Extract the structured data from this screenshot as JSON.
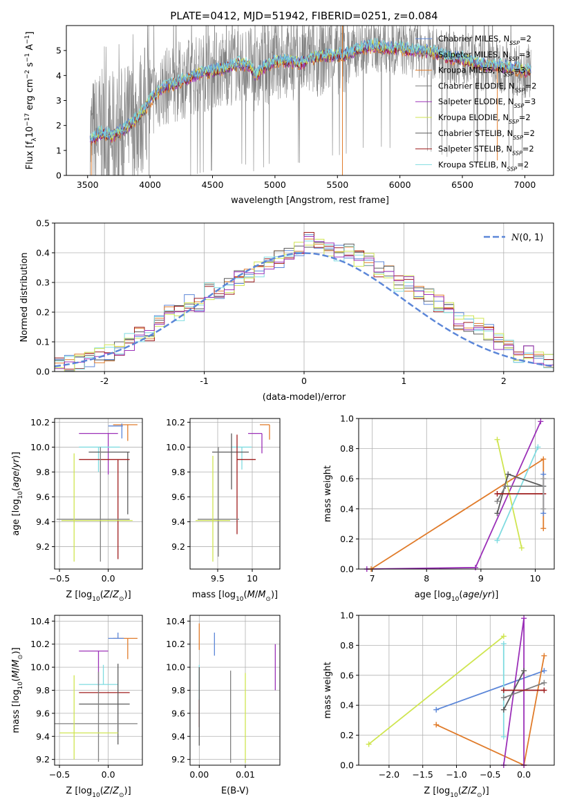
{
  "figure": {
    "title": "PLATE=0412, MJD=51942, FIBERID=0251, z=0.084"
  },
  "colors": {
    "Chabrier MILES": "#5b86d8",
    "Salpeter MILES": "#9b9b9b",
    "Kroupa MILES": "#e07b2a",
    "Chabrier ELODIE": "#7f7f7f",
    "Salpeter ELODIE": "#9b30b8",
    "Kroupa ELODIE": "#cfe550",
    "Chabrier STELIB": "#5a5a5a",
    "Salpeter STELIB": "#9e1b1b",
    "Kroupa STELIB": "#7fdbe0",
    "data": "#808080",
    "normal": "#5b86d8"
  },
  "chart_data": [
    {
      "id": "spectrum",
      "type": "line",
      "xlabel": "wavelength [Angstrom, rest frame]",
      "ylabel": "Flux [f_λ 10^-17 erg cm^-2 s^-1 A^-1]",
      "xlim": [
        3330,
        7230
      ],
      "ylim": [
        0,
        6
      ],
      "xticks": [
        3500,
        4000,
        4500,
        5000,
        5500,
        6000,
        6500,
        7000
      ],
      "yticks": [
        0,
        1,
        2,
        3,
        4,
        5
      ],
      "legend_position": "top-right",
      "legend": [
        {
          "model": "Chabrier MILES",
          "label": "Chabrier MILES, N",
          "n_ssp": 2
        },
        {
          "model": "Salpeter MILES",
          "label": "Salpeter MILES, N",
          "n_ssp": 3
        },
        {
          "model": "Kroupa MILES",
          "label": "Kroupa MILES, N",
          "n_ssp": 3
        },
        {
          "model": "Chabrier ELODIE",
          "label": "Chabrier ELODIE, N",
          "n_ssp": 2
        },
        {
          "model": "Salpeter ELODIE",
          "label": "Salpeter ELODIE, N",
          "n_ssp": 3
        },
        {
          "model": "Kroupa ELODIE",
          "label": "Kroupa ELODIE, N",
          "n_ssp": 2
        },
        {
          "model": "Chabrier STELIB",
          "label": "Chabrier STELIB, N",
          "n_ssp": 2
        },
        {
          "model": "Salpeter STELIB",
          "label": "Salpeter STELIB, N",
          "n_ssp": 2
        },
        {
          "model": "Kroupa STELIB",
          "label": "Kroupa STELIB, N",
          "n_ssp": 2
        }
      ],
      "model_continuum": {
        "x": [
          3520,
          3600,
          3700,
          3800,
          3900,
          4000,
          4100,
          4200,
          4300,
          4400,
          4500,
          4600,
          4700,
          4800,
          4850,
          4900,
          5000,
          5100,
          5200,
          5300,
          5400,
          5500,
          5600,
          5700,
          5800,
          5900,
          6000,
          6100,
          6200,
          6300,
          6400,
          6500,
          6600,
          6700,
          6800,
          6900,
          7000,
          7050
        ],
        "y": [
          1.4,
          1.7,
          1.6,
          1.9,
          2.3,
          3.0,
          3.5,
          3.7,
          3.9,
          4.1,
          4.2,
          4.3,
          4.5,
          4.4,
          4.0,
          4.3,
          4.6,
          4.6,
          4.5,
          4.7,
          4.8,
          4.8,
          4.9,
          5.1,
          5.2,
          5.1,
          5.1,
          5.0,
          5.0,
          4.9,
          4.7,
          4.7,
          4.5,
          4.4,
          4.4,
          4.3,
          4.2,
          4.2
        ]
      }
    },
    {
      "id": "residuals",
      "type": "step",
      "xlabel": "(data-model)/error",
      "ylabel": "Normed distribution",
      "xlim": [
        -2.5,
        2.5
      ],
      "ylim": [
        0,
        0.5
      ],
      "xticks": [
        -2,
        -1,
        0,
        1,
        2
      ],
      "yticks": [
        0.0,
        0.1,
        0.2,
        0.3,
        0.4,
        0.5
      ],
      "grid": true,
      "legend_position": "top-right",
      "legend_label": "N(0, 1)",
      "bin_edges": [
        -2.5,
        -2.4,
        -2.3,
        -2.2,
        -2.1,
        -2.0,
        -1.9,
        -1.8,
        -1.7,
        -1.6,
        -1.5,
        -1.4,
        -1.3,
        -1.2,
        -1.1,
        -1.0,
        -0.9,
        -0.8,
        -0.7,
        -0.6,
        -0.5,
        -0.4,
        -0.3,
        -0.2,
        -0.1,
        0.0,
        0.1,
        0.2,
        0.3,
        0.4,
        0.5,
        0.6,
        0.7,
        0.8,
        0.9,
        1.0,
        1.1,
        1.2,
        1.3,
        1.4,
        1.5,
        1.6,
        1.7,
        1.8,
        1.9,
        2.0,
        2.1,
        2.2,
        2.3,
        2.4,
        2.5
      ],
      "histogram": [
        0.018,
        0.025,
        0.03,
        0.04,
        0.055,
        0.06,
        0.08,
        0.1,
        0.12,
        0.13,
        0.17,
        0.2,
        0.2,
        0.23,
        0.22,
        0.27,
        0.27,
        0.29,
        0.31,
        0.33,
        0.34,
        0.36,
        0.38,
        0.39,
        0.42,
        0.44,
        0.42,
        0.41,
        0.4,
        0.4,
        0.38,
        0.37,
        0.34,
        0.33,
        0.3,
        0.3,
        0.26,
        0.25,
        0.23,
        0.22,
        0.17,
        0.16,
        0.15,
        0.13,
        0.1,
        0.08,
        0.06,
        0.06,
        0.045,
        0.04
      ]
    },
    {
      "id": "z-age",
      "type": "errorbar",
      "xlabel": "Z [log10(Z/Z☉)]",
      "ylabel": "age  [log10(age/yr)]",
      "xlim": [
        -0.55,
        0.35
      ],
      "ylim": [
        9.02,
        10.23
      ],
      "xticks": [
        -0.5,
        0.0
      ],
      "xticklabels": [
        "−0.5",
        "0.0"
      ],
      "yticks": [
        9.2,
        9.4,
        9.6,
        9.8,
        10.0,
        10.2
      ],
      "grid": true,
      "points": [
        {
          "model": "Kroupa MILES",
          "x": 0.2,
          "y": 10.18,
          "xerr": [
            0.15,
            0.1
          ],
          "yerr": [
            0.13,
            0.0
          ]
        },
        {
          "model": "Chabrier MILES",
          "x": 0.14,
          "y": 10.17,
          "xerr": [
            0.14,
            0.01
          ],
          "yerr": [
            0.1,
            0.02
          ]
        },
        {
          "model": "Salpeter ELODIE",
          "x": 0.0,
          "y": 10.11,
          "xerr": [
            0.3,
            0.1
          ],
          "yerr": [
            0.33,
            0.0
          ]
        },
        {
          "model": "Kroupa STELIB",
          "x": -0.1,
          "y": 10.0,
          "xerr": [
            0.2,
            0.22
          ],
          "yerr": [
            0.2,
            0.0
          ]
        },
        {
          "model": "Chabrier STELIB",
          "x": 0.2,
          "y": 9.96,
          "xerr": [
            0.4,
            0.02
          ],
          "yerr": [
            0.5,
            0.0
          ]
        },
        {
          "model": "Salpeter STELIB",
          "x": 0.0,
          "y": 9.9,
          "xerr": [
            0.3,
            0.22
          ],
          "yerr": [
            0.0,
            0.0
          ]
        },
        {
          "model": "Salpeter STELIB",
          "x": 0.1,
          "y": 9.9,
          "xerr": [
            0.0,
            0.0
          ],
          "yerr": [
            0.8,
            0.0
          ]
        },
        {
          "model": "Chabrier ELODIE",
          "x": -0.08,
          "y": 9.42,
          "xerr": [
            0.45,
            0.3
          ],
          "yerr": [
            0.34,
            0.58
          ]
        },
        {
          "model": "Kroupa ELODIE",
          "x": -0.35,
          "y": 9.41,
          "xerr": [
            0.13,
            0.6
          ],
          "yerr": [
            0.33,
            0.54
          ]
        }
      ]
    },
    {
      "id": "mass-age",
      "type": "errorbar",
      "xlabel": "mass [log10(M/M☉)]",
      "xlim": [
        9.1,
        10.4
      ],
      "ylim": [
        9.02,
        10.23
      ],
      "xticks": [
        9.5,
        10.0
      ],
      "yticks": [
        9.2,
        9.4,
        9.6,
        9.8,
        10.0,
        10.2
      ],
      "grid": true,
      "points": [
        {
          "model": "Kroupa MILES",
          "x": 10.25,
          "y": 10.18,
          "xerr": [
            0.14,
            0.0
          ],
          "yerr": [
            0.12,
            0.0
          ]
        },
        {
          "model": "Salpeter ELODIE",
          "x": 10.14,
          "y": 10.11,
          "xerr": [
            0.2,
            0.0
          ],
          "yerr": [
            0.16,
            0.0
          ]
        },
        {
          "model": "Kroupa STELIB",
          "x": 9.85,
          "y": 10.0,
          "xerr": [
            0.15,
            0.14
          ],
          "yerr": [
            0.18,
            0.0
          ]
        },
        {
          "model": "Chabrier STELIB",
          "x": 9.7,
          "y": 9.96,
          "xerr": [
            0.28,
            0.25
          ],
          "yerr": [
            0.3,
            0.15
          ]
        },
        {
          "model": "Salpeter STELIB",
          "x": 9.78,
          "y": 9.9,
          "xerr": [
            0.0,
            0.27
          ],
          "yerr": [
            0.6,
            0.2
          ]
        },
        {
          "model": "Chabrier ELODIE",
          "x": 9.51,
          "y": 9.42,
          "xerr": [
            0.3,
            0.3
          ],
          "yerr": [
            0.3,
            0.58
          ]
        },
        {
          "model": "Kroupa ELODIE",
          "x": 9.43,
          "y": 9.41,
          "xerr": [
            0.25,
            0.25
          ],
          "yerr": [
            0.33,
            0.52
          ]
        }
      ]
    },
    {
      "id": "age-weight",
      "type": "line",
      "xlabel": "age  [log10(age/yr)]",
      "ylabel": "mass weight",
      "xlim": [
        6.75,
        10.35
      ],
      "ylim": [
        0.0,
        1.0
      ],
      "xticks": [
        7,
        8,
        9,
        10
      ],
      "yticks": [
        0.0,
        0.2,
        0.4,
        0.6,
        0.8,
        1.0
      ],
      "grid": true,
      "series": [
        {
          "model": "Salpeter ELODIE",
          "x": [
            6.9,
            8.9,
            10.1
          ],
          "y": [
            0.0,
            0.01,
            0.98
          ]
        },
        {
          "model": "Kroupa MILES",
          "x": [
            6.98,
            10.15,
            10.15
          ],
          "y": [
            0.0,
            0.73,
            0.27
          ]
        },
        {
          "model": "Kroupa ELODIE",
          "x": [
            9.3,
            9.75
          ],
          "y": [
            0.86,
            0.14
          ]
        },
        {
          "model": "Kroupa STELIB",
          "x": [
            9.3,
            10.05
          ],
          "y": [
            0.19,
            0.81
          ]
        },
        {
          "model": "Chabrier STELIB",
          "x": [
            9.3,
            9.5,
            10.15
          ],
          "y": [
            0.37,
            0.63,
            0.55
          ]
        },
        {
          "model": "Chabrier ELODIE",
          "x": [
            9.3,
            9.45,
            10.15
          ],
          "y": [
            0.45,
            0.55,
            0.55
          ]
        },
        {
          "model": "Salpeter STELIB",
          "x": [
            9.3,
            10.15
          ],
          "y": [
            0.5,
            0.5
          ]
        },
        {
          "model": "Chabrier MILES",
          "x": [
            10.15,
            10.15
          ],
          "y": [
            0.37,
            0.63
          ]
        },
        {
          "model": "Salpeter MILES",
          "x": [
            10.15,
            10.15
          ],
          "y": [
            0.4,
            0.6
          ]
        }
      ]
    },
    {
      "id": "z-mass",
      "type": "errorbar",
      "xlabel": "Z [log10(Z/Z☉)]",
      "ylabel": "mass [log10(M/M☉)]",
      "xlim": [
        -0.55,
        0.35
      ],
      "ylim": [
        9.15,
        10.45
      ],
      "xticks": [
        -0.5,
        0.0
      ],
      "xticklabels": [
        "−0.5",
        "0.0"
      ],
      "yticks": [
        9.2,
        9.4,
        9.6,
        9.8,
        10.0,
        10.2,
        10.4
      ],
      "grid": true,
      "points": [
        {
          "model": "Kroupa MILES",
          "x": 0.2,
          "y": 10.25,
          "xerr": [
            0.15,
            0.1
          ],
          "yerr": [
            0.18,
            0.0
          ]
        },
        {
          "model": "Chabrier MILES",
          "x": 0.1,
          "y": 10.25,
          "xerr": [
            0.1,
            0.06
          ],
          "yerr": [
            0.0,
            0.05
          ]
        },
        {
          "model": "Salpeter ELODIE",
          "x": -0.1,
          "y": 10.14,
          "xerr": [
            0.2,
            0.1
          ],
          "yerr": [
            0.3,
            0.0
          ]
        },
        {
          "model": "Kroupa STELIB",
          "x": -0.05,
          "y": 9.85,
          "xerr": [
            0.25,
            0.15
          ],
          "yerr": [
            0.0,
            0.17
          ]
        },
        {
          "model": "Salpeter STELIB",
          "x": 0.0,
          "y": 9.78,
          "xerr": [
            0.3,
            0.22
          ],
          "yerr": [
            0.0,
            0.0
          ]
        },
        {
          "model": "Chabrier STELIB",
          "x": 0.1,
          "y": 9.68,
          "xerr": [
            0.4,
            0.12
          ],
          "yerr": [
            0.35,
            0.35
          ]
        },
        {
          "model": "Chabrier ELODIE",
          "x": -0.1,
          "y": 9.51,
          "xerr": [
            0.45,
            0.4
          ],
          "yerr": [
            0.33,
            0.45
          ]
        },
        {
          "model": "Kroupa ELODIE",
          "x": -0.35,
          "y": 9.43,
          "xerr": [
            0.15,
            0.45
          ],
          "yerr": [
            0.23,
            0.5
          ]
        }
      ]
    },
    {
      "id": "ebv-mass",
      "type": "errorbar",
      "xlabel": "E(B-V)",
      "xlim": [
        -0.002,
        0.0175
      ],
      "ylim": [
        9.15,
        10.45
      ],
      "xticks": [
        0.0,
        0.01
      ],
      "xticklabels": [
        "0.00",
        "0.01"
      ],
      "yticks": [
        9.2,
        9.4,
        9.6,
        9.8,
        10.0,
        10.2,
        10.4
      ],
      "grid": true,
      "points": [
        {
          "model": "Kroupa MILES",
          "x": 0.0,
          "y": 10.2,
          "xerr": [
            0.0,
            0.0
          ],
          "yerr": [
            0.05,
            0.18
          ]
        },
        {
          "model": "Chabrier MILES",
          "x": 0.0033,
          "y": 10.2,
          "xerr": [
            0.0,
            0.0
          ],
          "yerr": [
            0.1,
            0.1
          ]
        },
        {
          "model": "Kroupa STELIB",
          "x": 0.0,
          "y": 9.85,
          "xerr": [
            0.0,
            0.0
          ],
          "yerr": [
            0.15,
            0.17
          ]
        },
        {
          "model": "Salpeter STELIB",
          "x": 0.0,
          "y": 9.6,
          "xerr": [
            0.0,
            0.0
          ],
          "yerr": [
            0.12,
            0.12
          ]
        },
        {
          "model": "Chabrier STELIB",
          "x": 0.0,
          "y": 9.5,
          "xerr": [
            0.0,
            0.0
          ],
          "yerr": [
            0.18,
            0.5
          ]
        },
        {
          "model": "Chabrier ELODIE",
          "x": 0.0068,
          "y": 9.5,
          "xerr": [
            0.0,
            0.0
          ],
          "yerr": [
            0.33,
            0.47
          ]
        },
        {
          "model": "Kroupa ELODIE",
          "x": 0.01,
          "y": 9.5,
          "xerr": [
            0.0,
            0.0
          ],
          "yerr": [
            0.33,
            0.45
          ]
        },
        {
          "model": "Salpeter ELODIE",
          "x": 0.0165,
          "y": 10.0,
          "xerr": [
            0.0,
            0.0
          ],
          "yerr": [
            0.2,
            0.2
          ]
        }
      ]
    },
    {
      "id": "z-weight",
      "type": "line",
      "xlabel": "Z [log10(Z/Z☉)]",
      "ylabel": "mass weight",
      "xlim": [
        -2.45,
        0.45
      ],
      "ylim": [
        0.0,
        1.0
      ],
      "xticks": [
        -2.0,
        -1.5,
        -1.0,
        -0.5,
        0.0
      ],
      "xticklabels": [
        "−2.0",
        "−1.5",
        "−1.0",
        "−0.5",
        "0.0"
      ],
      "yticks": [
        0.0,
        0.2,
        0.4,
        0.6,
        0.8,
        1.0
      ],
      "grid": true,
      "series": [
        {
          "model": "Kroupa ELODIE",
          "x": [
            -2.3,
            -0.3
          ],
          "y": [
            0.14,
            0.86
          ]
        },
        {
          "model": "Chabrier MILES",
          "x": [
            -1.3,
            0.3
          ],
          "y": [
            0.37,
            0.63
          ]
        },
        {
          "model": "Kroupa MILES",
          "x": [
            -1.3,
            0.0,
            0.3
          ],
          "y": [
            0.27,
            0.0,
            0.73
          ]
        },
        {
          "model": "Salpeter ELODIE",
          "x": [
            -0.3,
            0.0,
            0.0
          ],
          "y": [
            0.0,
            0.98,
            0.0
          ]
        },
        {
          "model": "Kroupa STELIB",
          "x": [
            -0.3,
            -0.3
          ],
          "y": [
            0.19,
            0.81
          ]
        },
        {
          "model": "Chabrier STELIB",
          "x": [
            -0.3,
            0.0
          ],
          "y": [
            0.37,
            0.63
          ]
        },
        {
          "model": "Chabrier ELODIE",
          "x": [
            -0.3,
            0.3
          ],
          "y": [
            0.45,
            0.55
          ]
        },
        {
          "model": "Salpeter STELIB",
          "x": [
            -0.3,
            0.3
          ],
          "y": [
            0.5,
            0.5
          ]
        }
      ]
    }
  ]
}
